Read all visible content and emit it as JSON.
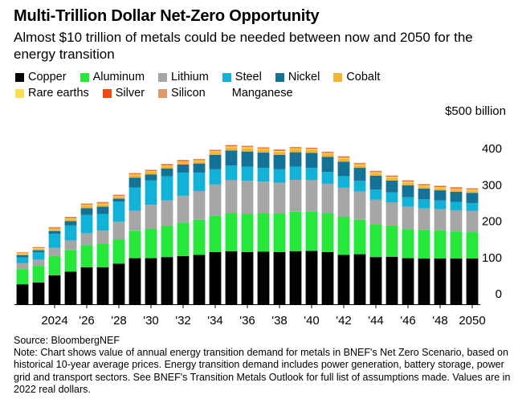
{
  "header": {
    "title": "Multi-Trillion Dollar Net-Zero Opportunity",
    "subtitle": "Almost $10 trillion of metals could be needed between now and 2050 for the energy transition"
  },
  "legend": [
    {
      "name": "Copper",
      "color": "#000000"
    },
    {
      "name": "Aluminum",
      "color": "#25e83a"
    },
    {
      "name": "Lithium",
      "color": "#a6a6a6"
    },
    {
      "name": "Steel",
      "color": "#12b2d6"
    },
    {
      "name": "Nickel",
      "color": "#137296"
    },
    {
      "name": "Cobalt",
      "color": "#f5b335"
    },
    {
      "name": "Rare earths",
      "color": "#f8df56"
    },
    {
      "name": "Silver",
      "color": "#ee4a14"
    },
    {
      "name": "Silicon",
      "color": "#e0996b"
    },
    {
      "name": "Manganese",
      "color": "#ffffff"
    }
  ],
  "footer": {
    "source": "Source: BloombergNEF",
    "note": "Note: Chart shows value of annual energy transition demand for metals in BNEF's Net Zero Scenario, based on historical 10-year average prices. Energy transition demand includes power generation, battery storage, power grid and transport sectors. See BNEF's Transition Metals Outlook for full list of assumptions made. Values are in 2022 real dollars."
  },
  "chart_data": {
    "type": "bar",
    "stacked": true,
    "title": "Multi-Trillion Dollar Net-Zero Opportunity",
    "ylabel": "$500 billion",
    "ylim": [
      0,
      500
    ],
    "yticks": [
      {
        "value": 0,
        "label": "0"
      },
      {
        "value": 100,
        "label": "100"
      },
      {
        "value": 200,
        "label": "200"
      },
      {
        "value": 300,
        "label": "300"
      },
      {
        "value": 400,
        "label": "400"
      }
    ],
    "y_unit_label": "$500 billion",
    "grid": false,
    "legend_position": "top",
    "categories": [
      "2022",
      "2023",
      "2024",
      "2025",
      "2026",
      "2027",
      "2028",
      "2029",
      "2030",
      "2031",
      "2032",
      "2033",
      "2034",
      "2035",
      "2036",
      "2037",
      "2038",
      "2039",
      "2040",
      "2041",
      "2042",
      "2043",
      "2044",
      "2045",
      "2046",
      "2047",
      "2048",
      "2049",
      "2050"
    ],
    "xtick_labels": [
      {
        "category": "2024",
        "label": "2024"
      },
      {
        "category": "2026",
        "label": "'26"
      },
      {
        "category": "2028",
        "label": "'28"
      },
      {
        "category": "2030",
        "label": "'30"
      },
      {
        "category": "2032",
        "label": "'32"
      },
      {
        "category": "2034",
        "label": "'34"
      },
      {
        "category": "2036",
        "label": "'36"
      },
      {
        "category": "2038",
        "label": "'38"
      },
      {
        "category": "2040",
        "label": "'40"
      },
      {
        "category": "2042",
        "label": "'42"
      },
      {
        "category": "2044",
        "label": "'44"
      },
      {
        "category": "2046",
        "label": "'46"
      },
      {
        "category": "2048",
        "label": "'48"
      },
      {
        "category": "2050",
        "label": "2050"
      }
    ],
    "series": [
      {
        "name": "Copper",
        "color": "#000000",
        "values": [
          55,
          60,
          80,
          90,
          102,
          102,
          112,
          127,
          127,
          130,
          133,
          136,
          144,
          146,
          144,
          145,
          144,
          146,
          147,
          144,
          136,
          138,
          130,
          131,
          127,
          126,
          126,
          126,
          126
        ]
      },
      {
        "name": "Aluminum",
        "color": "#25e83a",
        "values": [
          42,
          46,
          53,
          59,
          61,
          64,
          67,
          75,
          81,
          86,
          92,
          97,
          100,
          105,
          105,
          106,
          106,
          109,
          108,
          106,
          105,
          95,
          89,
          86,
          80,
          79,
          78,
          75,
          73
        ]
      },
      {
        "name": "Lithium",
        "color": "#a6a6a6",
        "values": [
          16,
          17,
          23,
          27,
          33,
          37,
          48,
          56,
          66,
          70,
          74,
          79,
          86,
          91,
          91,
          87,
          85,
          88,
          87,
          82,
          80,
          78,
          69,
          64,
          62,
          59,
          58,
          58,
          58
        ]
      },
      {
        "name": "Steel",
        "color": "#12b2d6",
        "values": [
          16,
          20,
          38,
          41,
          50,
          46,
          56,
          64,
          67,
          67,
          64,
          51,
          42,
          40,
          39,
          38,
          37,
          36,
          34,
          33,
          32,
          29,
          28,
          27,
          26,
          25,
          24,
          23,
          22
        ]
      },
      {
        "name": "Nickel",
        "color": "#137296",
        "values": [
          6,
          6,
          8,
          12,
          19,
          20,
          8,
          27,
          17,
          21,
          22,
          25,
          40,
          42,
          42,
          42,
          40,
          40,
          41,
          41,
          40,
          36,
          38,
          33,
          33,
          30,
          28,
          28,
          28
        ]
      },
      {
        "name": "Cobalt",
        "color": "#f5b335",
        "values": [
          4,
          4,
          5,
          6,
          7,
          7,
          5,
          7,
          7,
          7,
          7,
          7,
          8,
          8,
          9,
          8,
          8,
          8,
          8,
          8,
          8,
          7,
          7,
          7,
          7,
          6,
          6,
          6,
          6
        ]
      },
      {
        "name": "Rare earths",
        "color": "#f8df56",
        "values": [
          2,
          2,
          2,
          2,
          2,
          2,
          2,
          2,
          2,
          2,
          2,
          2,
          2,
          3,
          3,
          3,
          3,
          3,
          3,
          3,
          3,
          3,
          3,
          3,
          3,
          3,
          3,
          3,
          3
        ]
      },
      {
        "name": "Silver",
        "color": "#ee4a14",
        "values": [
          1,
          1,
          2,
          2,
          2,
          2,
          2,
          2,
          2,
          2,
          2,
          2,
          2,
          2,
          2,
          2,
          2,
          2,
          2,
          2,
          2,
          2,
          2,
          2,
          2,
          2,
          2,
          2,
          2
        ]
      },
      {
        "name": "Silicon",
        "color": "#e0996b",
        "values": [
          2,
          2,
          2,
          2,
          2,
          2,
          2,
          2,
          2,
          2,
          2,
          2,
          2,
          2,
          2,
          2,
          2,
          2,
          2,
          2,
          2,
          2,
          2,
          2,
          2,
          2,
          2,
          2,
          2
        ]
      },
      {
        "name": "Manganese",
        "color": "#ffffff",
        "values": [
          1,
          1,
          1,
          1,
          1,
          1,
          1,
          1,
          1,
          1,
          1,
          1,
          1,
          1,
          1,
          1,
          1,
          1,
          1,
          1,
          1,
          1,
          1,
          1,
          1,
          1,
          1,
          1,
          1
        ]
      }
    ]
  }
}
